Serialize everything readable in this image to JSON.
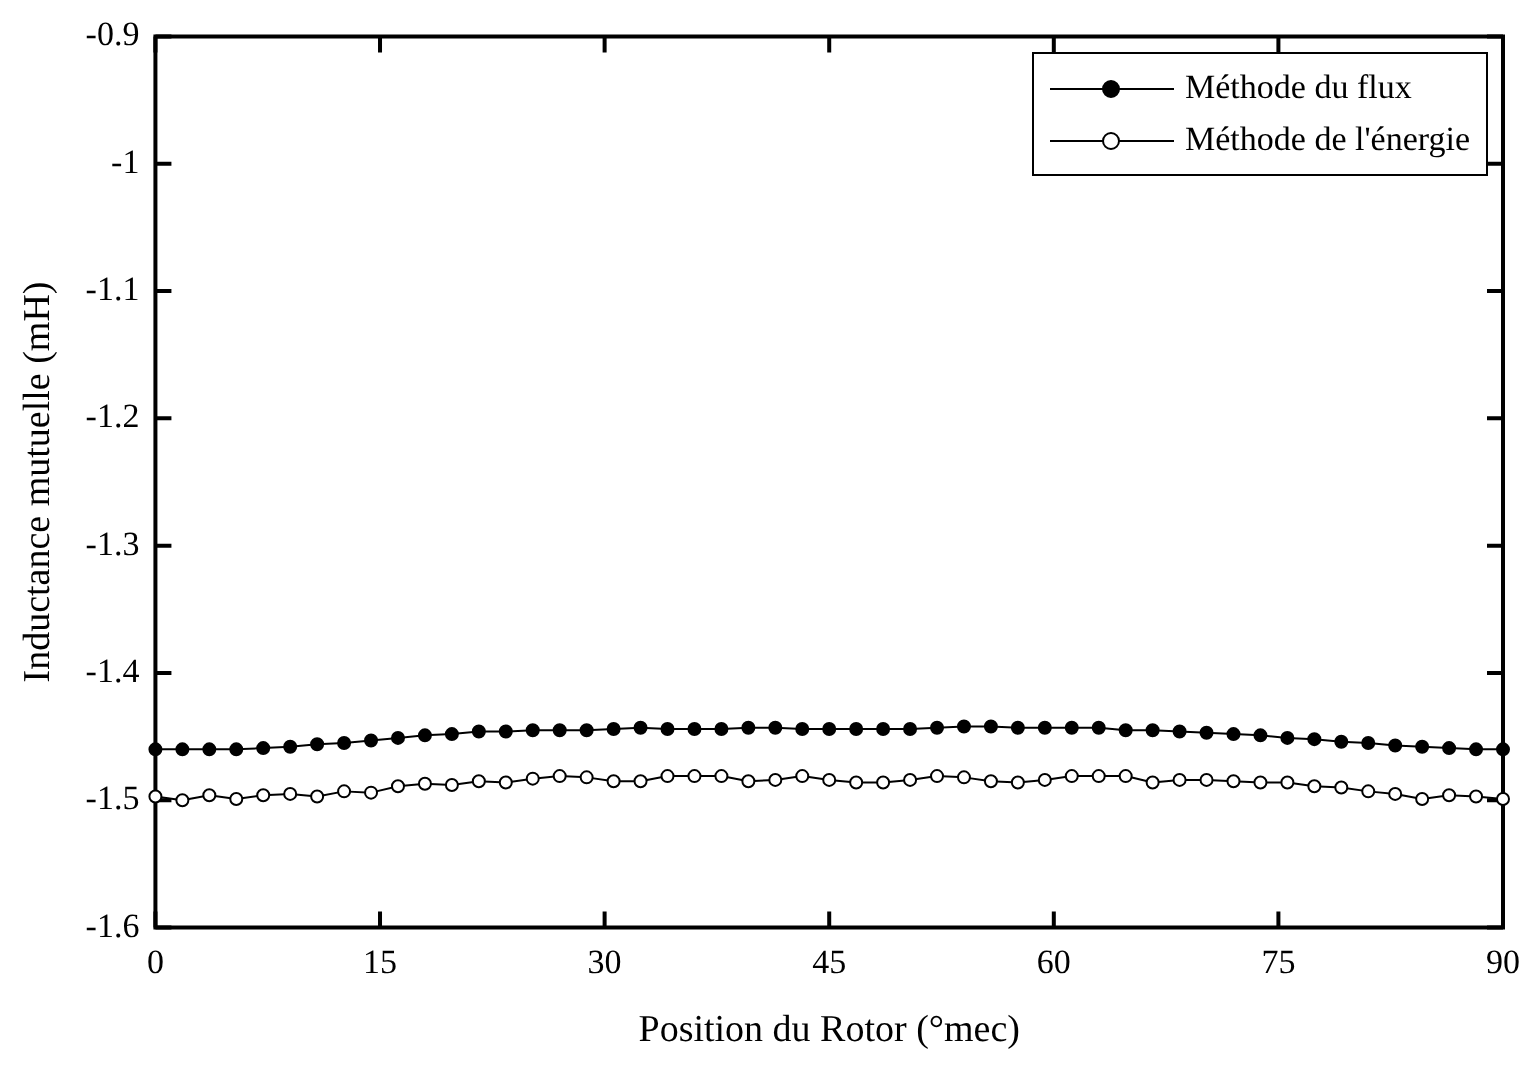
{
  "chart_data": {
    "type": "line",
    "xlabel": "Position du Rotor (°mec)",
    "ylabel": "Inductance mutuelle (mH)",
    "x": [
      0,
      1.8,
      3.6,
      5.4,
      7.2,
      9,
      10.8,
      12.6,
      14.4,
      16.2,
      18,
      19.8,
      21.6,
      23.4,
      25.2,
      27,
      28.8,
      30.6,
      32.4,
      34.2,
      36,
      37.8,
      39.6,
      41.4,
      43.2,
      45,
      46.8,
      48.6,
      50.4,
      52.2,
      54,
      55.8,
      57.6,
      59.4,
      61.2,
      63,
      64.8,
      66.6,
      68.4,
      70.2,
      72,
      73.8,
      75.6,
      77.4,
      79.2,
      81,
      82.8,
      84.6,
      86.4,
      88.2,
      90
    ],
    "series": [
      {
        "name": "Méthode du flux",
        "color": "#000000",
        "values": [
          -1.46,
          -1.46,
          -1.46,
          -1.46,
          -1.459,
          -1.458,
          -1.456,
          -1.455,
          -1.453,
          -1.451,
          -1.449,
          -1.448,
          -1.446,
          -1.446,
          -1.445,
          -1.445,
          -1.445,
          -1.444,
          -1.443,
          -1.444,
          -1.444,
          -1.444,
          -1.443,
          -1.443,
          -1.444,
          -1.444,
          -1.444,
          -1.444,
          -1.444,
          -1.443,
          -1.442,
          -1.442,
          -1.443,
          -1.443,
          -1.443,
          -1.443,
          -1.445,
          -1.445,
          -1.446,
          -1.447,
          -1.448,
          -1.449,
          -1.451,
          -1.452,
          -1.454,
          -1.455,
          -1.457,
          -1.458,
          -1.459,
          -1.46,
          -1.46
        ]
      },
      {
        "name": "Méthode de l'énergie",
        "color": "#000000",
        "values": [
          -1.497,
          -1.5,
          -1.496,
          -1.499,
          -1.496,
          -1.495,
          -1.497,
          -1.493,
          -1.494,
          -1.489,
          -1.487,
          -1.488,
          -1.485,
          -1.486,
          -1.483,
          -1.481,
          -1.482,
          -1.485,
          -1.485,
          -1.481,
          -1.481,
          -1.481,
          -1.485,
          -1.484,
          -1.481,
          -1.484,
          -1.486,
          -1.486,
          -1.484,
          -1.481,
          -1.482,
          -1.485,
          -1.486,
          -1.484,
          -1.481,
          -1.481,
          -1.481,
          -1.486,
          -1.484,
          -1.484,
          -1.485,
          -1.486,
          -1.486,
          -1.489,
          -1.49,
          -1.493,
          -1.495,
          -1.499,
          -1.496,
          -1.497,
          -1.499
        ]
      }
    ],
    "xlim": [
      0,
      90
    ],
    "xticks": [
      0,
      15,
      30,
      45,
      60,
      75,
      90
    ],
    "ylim": [
      -1.6,
      -0.9
    ],
    "yticks": [
      -1.6,
      -1.5,
      -1.4,
      -1.3,
      -1.2,
      -1.1,
      -1,
      -0.9
    ],
    "grid": false,
    "legend": "top right",
    "marker": "circle",
    "line_style": "solid"
  }
}
